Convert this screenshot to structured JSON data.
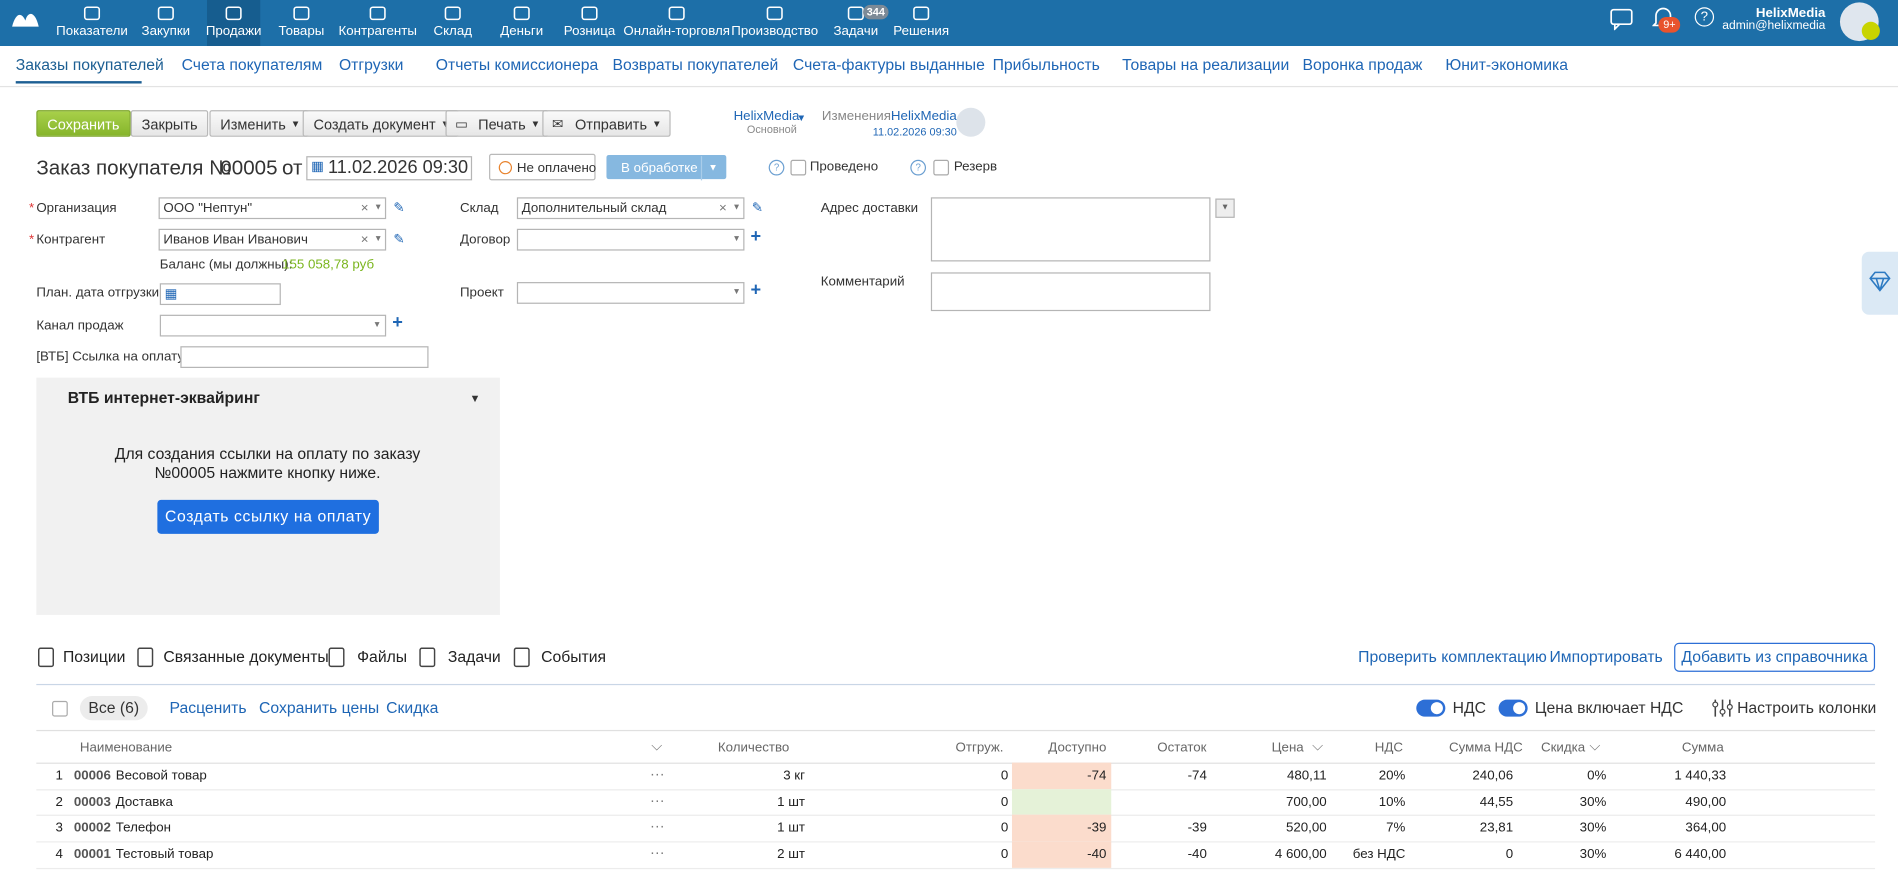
{
  "nav": {
    "items": [
      "Показатели",
      "Закупки",
      "Продажи",
      "Товары",
      "Контрагенты",
      "Склад",
      "Деньги",
      "Розница",
      "Онлайн-торговля",
      "Производство",
      "Задачи",
      "Решения"
    ],
    "tasks_badge": "344",
    "notifications_badge": "9+",
    "user_name": "HelixMedia",
    "user_email": "admin@helixmedia"
  },
  "subnav": [
    "Заказы покупателей",
    "Счета покупателям",
    "Отгрузки",
    "Отчеты комиссионера",
    "Возвраты покупателей",
    "Счета-фактуры выданные",
    "Прибыльность",
    "Товары на реализации",
    "Воронка продаж",
    "Юнит-экономика"
  ],
  "toolbar": {
    "save": "Сохранить",
    "close": "Закрыть",
    "edit": "Изменить",
    "create": "Создать документ",
    "print": "Печать",
    "send": "Отправить",
    "owner": "HelixMedia",
    "owner_group": "Основной",
    "changes_label": "Изменения:",
    "changes_user": "HelixMedia",
    "changes_date": "11.02.2026 09:30"
  },
  "document": {
    "title": "Заказ покупателя №",
    "number": "00005",
    "from": "от",
    "date": "11.02.2026 09:30",
    "payment": "Не оплачено",
    "status": "В обработке",
    "posted": "Проведено",
    "reserve": "Резерв"
  },
  "form": {
    "organization_label": "Организация",
    "organization": "ООО \"Нептун\"",
    "counterparty_label": "Контрагент",
    "counterparty": "Иванов Иван Иванович",
    "balance_label": "Баланс (мы должны):",
    "balance": "155 058,78 руб",
    "ship_date_label": "План. дата отгрузки",
    "channel_label": "Канал продаж",
    "vtb_link_label": "[ВТБ] Ссылка на оплату",
    "warehouse_label": "Склад",
    "warehouse": "Дополнительный склад",
    "contract_label": "Договор",
    "project_label": "Проект",
    "address_label": "Адрес доставки",
    "comment_label": "Комментарий"
  },
  "vtb": {
    "title": "ВТБ интернет-эквайринг",
    "text": "Для создания ссылки на оплату по заказу №00005 нажмите кнопку ниже.",
    "button": "Создать ссылку на оплату"
  },
  "tabs": {
    "items": [
      "Позиции",
      "Связанные документы",
      "Файлы",
      "Задачи",
      "События"
    ],
    "check": "Проверить комплектацию",
    "import": "Импортировать",
    "add": "Добавить из справочника"
  },
  "table": {
    "all": "Все (6)",
    "reprice": "Расценить",
    "save_prices": "Сохранить цены",
    "discount": "Скидка",
    "vat_toggle": "НДС",
    "price_vat_toggle": "Цена включает НДС",
    "columns_setup": "Настроить колонки",
    "columns": [
      "Наименование",
      "Количество",
      "Отгруж.",
      "Доступно",
      "Остаток",
      "Цена",
      "НДС",
      "Сумма НДС",
      "Скидка",
      "Сумма"
    ],
    "rows": [
      {
        "num": 1,
        "code": "00006",
        "name": "Весовой товар",
        "qty": "3 кг",
        "shipped": "0",
        "available": "-74",
        "remainder": "-74",
        "price": "480,11",
        "vat": "20%",
        "vat_sum": "240,06",
        "discount": "0%",
        "sum": "1 440,33"
      },
      {
        "num": 2,
        "code": "00003",
        "name": "Доставка",
        "qty": "1 шт",
        "shipped": "0",
        "available": null,
        "remainder": null,
        "price": "700,00",
        "vat": "10%",
        "vat_sum": "44,55",
        "discount": "30%",
        "sum": "490,00"
      },
      {
        "num": 3,
        "code": "00002",
        "name": "Телефон",
        "qty": "1 шт",
        "shipped": "0",
        "available": "-39",
        "remainder": "-39",
        "price": "520,00",
        "vat": "7%",
        "vat_sum": "23,81",
        "discount": "30%",
        "sum": "364,00"
      },
      {
        "num": 4,
        "code": "00001",
        "name": "Тестовый товар",
        "qty": "2 шт",
        "shipped": "0",
        "available": "-40",
        "remainder": "-40",
        "price": "4 600,00",
        "vat": "без НДС",
        "vat_sum": "0",
        "discount": "30%",
        "sum": "6 440,00"
      }
    ]
  }
}
